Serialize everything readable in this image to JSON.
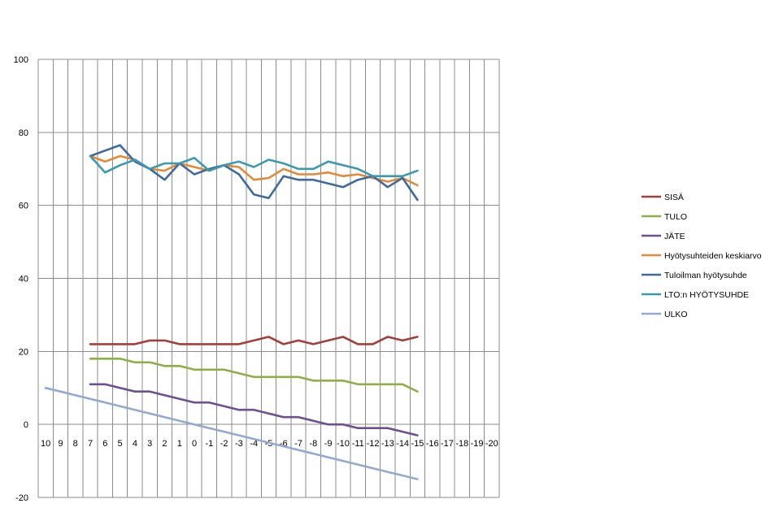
{
  "chart_data": {
    "type": "line",
    "title": "",
    "xlabel": "",
    "ylabel": "",
    "ylim": [
      -20,
      100
    ],
    "yticks": [
      -20,
      0,
      20,
      40,
      60,
      80,
      100
    ],
    "x": [
      "10",
      "9",
      "8",
      "7",
      "6",
      "5",
      "4",
      "3",
      "2",
      "1",
      "0",
      "-1",
      "-2",
      "-3",
      "-4",
      "-5",
      "-6",
      "-7",
      "-8",
      "-9",
      "-10",
      "-11",
      "-12",
      "-13",
      "-14",
      "-15",
      "-16",
      "-17",
      "-18",
      "-19",
      "-20"
    ],
    "grid": "vertical and horizontal",
    "legend": "right",
    "series": [
      {
        "name": "SISÄ",
        "color": "#A0403D",
        "values": [
          null,
          null,
          null,
          22,
          22,
          22,
          22,
          23,
          23,
          22,
          22,
          22,
          22,
          22,
          23,
          24,
          22,
          23,
          22,
          23,
          24,
          22,
          22,
          24,
          23,
          24,
          null,
          null,
          null,
          null,
          null
        ]
      },
      {
        "name": "TULO",
        "color": "#8FAE4A",
        "values": [
          null,
          null,
          null,
          18,
          18,
          18,
          17,
          17,
          16,
          16,
          15,
          15,
          15,
          14,
          13,
          13,
          13,
          13,
          12,
          12,
          12,
          11,
          11,
          11,
          11,
          9,
          null,
          null,
          null,
          null,
          null
        ]
      },
      {
        "name": "JÄTE",
        "color": "#6E4F8F",
        "values": [
          null,
          null,
          null,
          11,
          11,
          10,
          9,
          9,
          8,
          7,
          6,
          6,
          5,
          4,
          4,
          3,
          2,
          2,
          1,
          0,
          0,
          -1,
          -1,
          -1,
          -2,
          -3,
          null,
          null,
          null,
          null,
          null
        ]
      },
      {
        "name": "Hyötysuhteiden keskiarvo",
        "color": "#E08A3C",
        "values": [
          null,
          null,
          null,
          73.5,
          72,
          73.5,
          72.5,
          70,
          69.5,
          71.5,
          70.5,
          69.5,
          71,
          70.5,
          67,
          67.5,
          70,
          68.5,
          68.5,
          69,
          68,
          68.5,
          67.5,
          66.5,
          67.5,
          65.5,
          null,
          null,
          null,
          null,
          null
        ]
      },
      {
        "name": "Tuloilman hyötysuhde",
        "color": "#3F6A9A",
        "values": [
          null,
          null,
          null,
          73.5,
          75,
          76.5,
          72,
          70,
          67,
          71.5,
          68.5,
          70,
          71,
          68.5,
          63,
          62,
          68,
          67,
          67,
          66,
          65,
          67,
          68,
          65,
          67.5,
          61.5,
          null,
          null,
          null,
          null,
          null
        ]
      },
      {
        "name": "LTO:n HYÖTYSUHDE",
        "color": "#3E98AE",
        "values": [
          null,
          null,
          null,
          73.5,
          69,
          71,
          72.5,
          70,
          71.5,
          71.5,
          73,
          69.5,
          71,
          72,
          70.5,
          72.5,
          71.5,
          70,
          70,
          72,
          71,
          70,
          68,
          68,
          68,
          69.5,
          null,
          null,
          null,
          null,
          null
        ]
      },
      {
        "name": "ULKO",
        "color": "#93A9CF",
        "values": [
          10,
          9,
          8,
          7,
          6,
          5,
          4,
          3,
          2,
          1,
          0,
          -1,
          -2,
          -3,
          -4,
          -5,
          -6,
          -7,
          -8,
          -9,
          -10,
          -11,
          -12,
          -13,
          -14,
          -15,
          null,
          null,
          null,
          null,
          null
        ]
      }
    ]
  }
}
